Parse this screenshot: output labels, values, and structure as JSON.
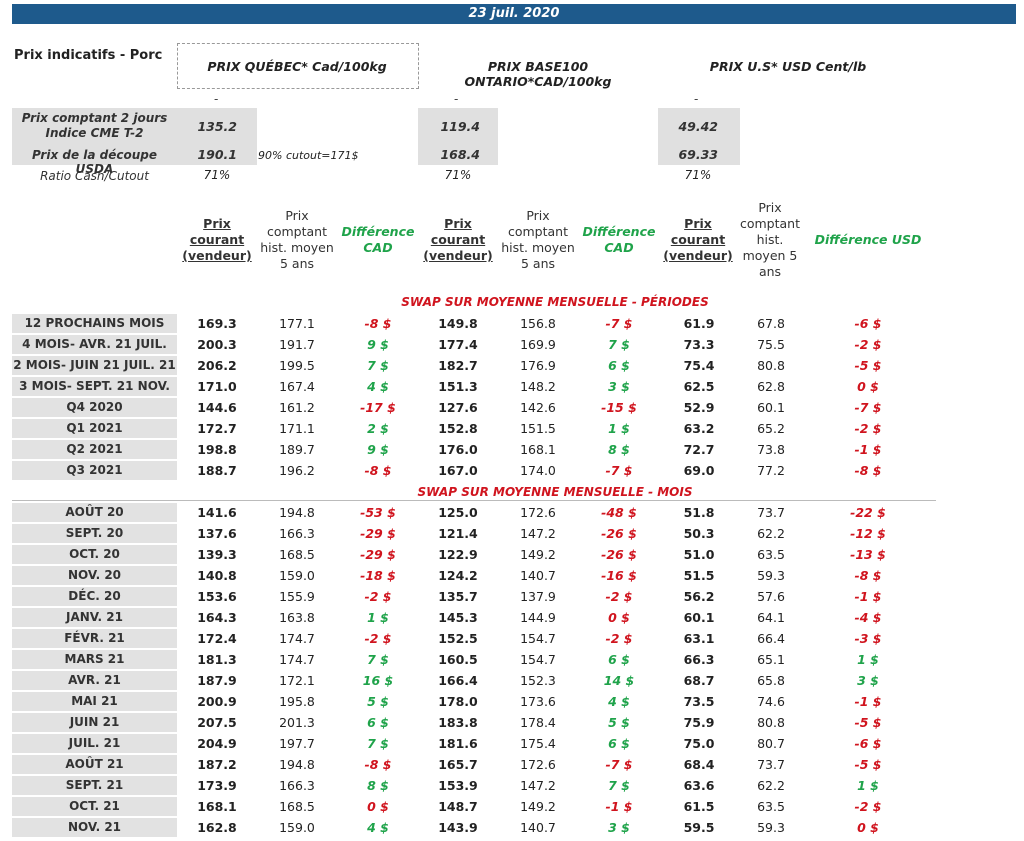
{
  "date": "23 juil. 2020",
  "title": "Prix indicatifs - Porc",
  "columns": {
    "quebec": "PRIX QUÉBEC* Cad/100kg",
    "ontario": "PRIX BASE100 ONTARIO*CAD/100kg",
    "us": "PRIX U.S* USD Cent/lb"
  },
  "dash": "-",
  "cash_label": "Prix comptant 2 jours\nIndice CME T-2",
  "cutout_label": "Prix de la découpe USDA",
  "ratio_label": "Ratio Cash/Cutout",
  "cutout_note": "90% cutout=171$",
  "cash": {
    "quebec": "135.2",
    "ontario": "119.4",
    "us": "49.42"
  },
  "cutout": {
    "quebec": "190.1",
    "ontario": "168.4",
    "us": "69.33"
  },
  "ratio": {
    "quebec": "71%",
    "ontario": "71%",
    "us": "71%"
  },
  "headers": {
    "current": "Prix courant (vendeur)",
    "hist": "Prix comptant hist. moyen 5 ans",
    "hist_us": "Prix comptant hist. moyen 5 ans",
    "diff_cad": "Différence CAD",
    "diff_usd": "Différence USD"
  },
  "section_periods": "SWAP SUR MOYENNE MENSUELLE - PÉRIODES",
  "section_months": "SWAP SUR MOYENNE MENSUELLE - MOIS",
  "periods": [
    {
      "label": "12 PROCHAINS MOIS",
      "q": "169.3",
      "qh": "177.1",
      "qd": "-8 $",
      "o": "149.8",
      "oh": "156.8",
      "od": "-7 $",
      "u": "61.9",
      "uh": "67.8",
      "ud": "-6 $"
    },
    {
      "label": "4 MOIS- AVR. 21 JUIL. 21",
      "q": "200.3",
      "qh": "191.7",
      "qd": "9 $",
      "o": "177.4",
      "oh": "169.9",
      "od": "7 $",
      "u": "73.3",
      "uh": "75.5",
      "ud": "-2 $"
    },
    {
      "label": "2 MOIS- JUIN 21 JUIL. 21",
      "q": "206.2",
      "qh": "199.5",
      "qd": "7 $",
      "o": "182.7",
      "oh": "176.9",
      "od": "6 $",
      "u": "75.4",
      "uh": "80.8",
      "ud": "-5 $"
    },
    {
      "label": "3 MOIS- SEPT. 21 NOV. 21",
      "q": "171.0",
      "qh": "167.4",
      "qd": "4 $",
      "o": "151.3",
      "oh": "148.2",
      "od": "3 $",
      "u": "62.5",
      "uh": "62.8",
      "ud": "0 $"
    },
    {
      "label": "Q4 2020",
      "q": "144.6",
      "qh": "161.2",
      "qd": "-17 $",
      "o": "127.6",
      "oh": "142.6",
      "od": "-15 $",
      "u": "52.9",
      "uh": "60.1",
      "ud": "-7 $"
    },
    {
      "label": "Q1 2021",
      "q": "172.7",
      "qh": "171.1",
      "qd": "2 $",
      "o": "152.8",
      "oh": "151.5",
      "od": "1 $",
      "u": "63.2",
      "uh": "65.2",
      "ud": "-2 $"
    },
    {
      "label": "Q2 2021",
      "q": "198.8",
      "qh": "189.7",
      "qd": "9 $",
      "o": "176.0",
      "oh": "168.1",
      "od": "8 $",
      "u": "72.7",
      "uh": "73.8",
      "ud": "-1 $"
    },
    {
      "label": "Q3 2021",
      "q": "188.7",
      "qh": "196.2",
      "qd": "-8 $",
      "o": "167.0",
      "oh": "174.0",
      "od": "-7 $",
      "u": "69.0",
      "uh": "77.2",
      "ud": "-8 $"
    }
  ],
  "months": [
    {
      "label": "AOÛT 20",
      "q": "141.6",
      "qh": "194.8",
      "qd": "-53 $",
      "o": "125.0",
      "oh": "172.6",
      "od": "-48 $",
      "u": "51.8",
      "uh": "73.7",
      "ud": "-22 $"
    },
    {
      "label": "SEPT. 20",
      "q": "137.6",
      "qh": "166.3",
      "qd": "-29 $",
      "o": "121.4",
      "oh": "147.2",
      "od": "-26 $",
      "u": "50.3",
      "uh": "62.2",
      "ud": "-12 $"
    },
    {
      "label": "OCT. 20",
      "q": "139.3",
      "qh": "168.5",
      "qd": "-29 $",
      "o": "122.9",
      "oh": "149.2",
      "od": "-26 $",
      "u": "51.0",
      "uh": "63.5",
      "ud": "-13 $"
    },
    {
      "label": "NOV. 20",
      "q": "140.8",
      "qh": "159.0",
      "qd": "-18 $",
      "o": "124.2",
      "oh": "140.7",
      "od": "-16 $",
      "u": "51.5",
      "uh": "59.3",
      "ud": "-8 $"
    },
    {
      "label": "DÉC. 20",
      "q": "153.6",
      "qh": "155.9",
      "qd": "-2 $",
      "o": "135.7",
      "oh": "137.9",
      "od": "-2 $",
      "u": "56.2",
      "uh": "57.6",
      "ud": "-1 $"
    },
    {
      "label": "JANV. 21",
      "q": "164.3",
      "qh": "163.8",
      "qd": "1 $",
      "o": "145.3",
      "oh": "144.9",
      "od": "0 $",
      "u": "60.1",
      "uh": "64.1",
      "ud": "-4 $"
    },
    {
      "label": "FÉVR. 21",
      "q": "172.4",
      "qh": "174.7",
      "qd": "-2 $",
      "o": "152.5",
      "oh": "154.7",
      "od": "-2 $",
      "u": "63.1",
      "uh": "66.4",
      "ud": "-3 $"
    },
    {
      "label": "MARS 21",
      "q": "181.3",
      "qh": "174.7",
      "qd": "7 $",
      "o": "160.5",
      "oh": "154.7",
      "od": "6 $",
      "u": "66.3",
      "uh": "65.1",
      "ud": "1 $"
    },
    {
      "label": "AVR. 21",
      "q": "187.9",
      "qh": "172.1",
      "qd": "16 $",
      "o": "166.4",
      "oh": "152.3",
      "od": "14 $",
      "u": "68.7",
      "uh": "65.8",
      "ud": "3 $"
    },
    {
      "label": "MAI 21",
      "q": "200.9",
      "qh": "195.8",
      "qd": "5 $",
      "o": "178.0",
      "oh": "173.6",
      "od": "4 $",
      "u": "73.5",
      "uh": "74.6",
      "ud": "-1 $"
    },
    {
      "label": "JUIN 21",
      "q": "207.5",
      "qh": "201.3",
      "qd": "6 $",
      "o": "183.8",
      "oh": "178.4",
      "od": "5 $",
      "u": "75.9",
      "uh": "80.8",
      "ud": "-5 $"
    },
    {
      "label": "JUIL. 21",
      "q": "204.9",
      "qh": "197.7",
      "qd": "7 $",
      "o": "181.6",
      "oh": "175.4",
      "od": "6 $",
      "u": "75.0",
      "uh": "80.7",
      "ud": "-6 $"
    },
    {
      "label": "AOÛT 21",
      "q": "187.2",
      "qh": "194.8",
      "qd": "-8 $",
      "o": "165.7",
      "oh": "172.6",
      "od": "-7 $",
      "u": "68.4",
      "uh": "73.7",
      "ud": "-5 $"
    },
    {
      "label": "SEPT. 21",
      "q": "173.9",
      "qh": "166.3",
      "qd": "8 $",
      "o": "153.9",
      "oh": "147.2",
      "od": "7 $",
      "u": "63.6",
      "uh": "62.2",
      "ud": "1 $"
    },
    {
      "label": "OCT. 21",
      "q": "168.1",
      "qh": "168.5",
      "qd": "0 $",
      "o": "148.7",
      "oh": "149.2",
      "od": "-1 $",
      "u": "61.5",
      "uh": "63.5",
      "ud": "-2 $"
    },
    {
      "label": "NOV. 21",
      "q": "162.8",
      "qh": "159.0",
      "qd": "4 $",
      "o": "143.9",
      "oh": "140.7",
      "od": "3 $",
      "u": "59.5",
      "uh": "59.3",
      "ud": "0 $"
    }
  ]
}
